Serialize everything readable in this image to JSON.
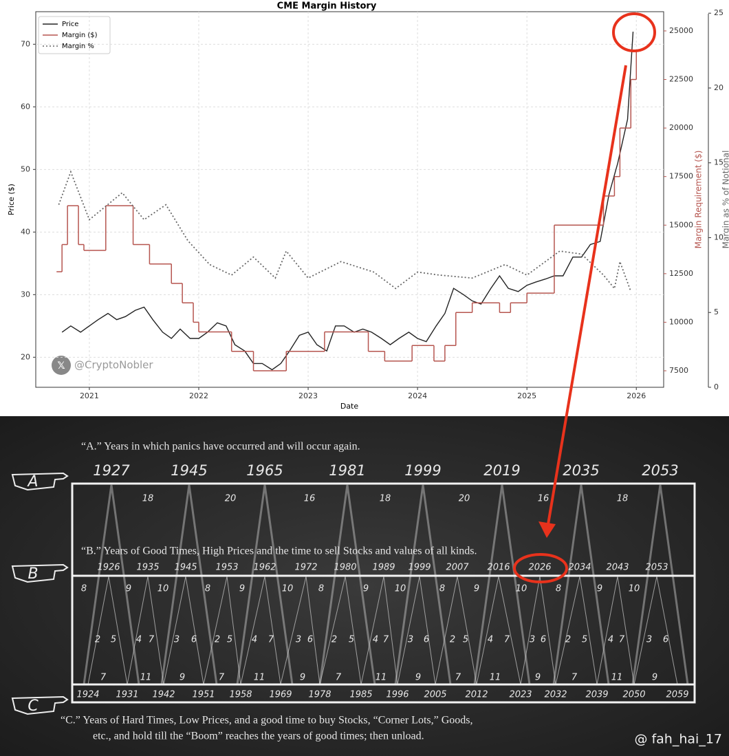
{
  "chart_data": {
    "type": "line",
    "title": "CME Margin History",
    "xlabel": "Date",
    "ylabel": "Price ($)",
    "y2label": "Margin Requirement ($)",
    "y3label": "Margin as % of Notional",
    "xlim": [
      2020.51,
      2026.25
    ],
    "xticks": [
      2021,
      2022,
      2023,
      2024,
      2025,
      2026
    ],
    "ylim": [
      15.2,
      75.2
    ],
    "yticks": [
      20,
      30,
      40,
      50,
      60,
      70
    ],
    "y2lim": [
      6650,
      25990
    ],
    "y2ticks": [
      7500,
      10000,
      12500,
      15000,
      17500,
      20000,
      22500,
      25000
    ],
    "y3lim": [
      0,
      25.1
    ],
    "y3ticks": [
      0,
      5,
      10,
      15,
      20,
      25
    ],
    "grid": true,
    "legend": "upper left",
    "series": [
      {
        "name": "Price",
        "color": "#222222",
        "style": "solid",
        "axis": "y",
        "x": [
          2020.75,
          2020.83,
          2020.92,
          2021.0,
          2021.08,
          2021.17,
          2021.25,
          2021.33,
          2021.42,
          2021.5,
          2021.58,
          2021.67,
          2021.75,
          2021.83,
          2021.92,
          2022.0,
          2022.08,
          2022.17,
          2022.25,
          2022.33,
          2022.42,
          2022.5,
          2022.58,
          2022.67,
          2022.75,
          2022.83,
          2022.92,
          2023.0,
          2023.08,
          2023.17,
          2023.25,
          2023.33,
          2023.42,
          2023.5,
          2023.58,
          2023.67,
          2023.75,
          2023.83,
          2023.92,
          2024.0,
          2024.08,
          2024.17,
          2024.25,
          2024.33,
          2024.42,
          2024.5,
          2024.58,
          2024.67,
          2024.75,
          2024.83,
          2024.92,
          2025.0,
          2025.08,
          2025.17,
          2025.25,
          2025.33,
          2025.42,
          2025.5,
          2025.58,
          2025.67,
          2025.75,
          2025.83,
          2025.92,
          2025.97
        ],
        "values": [
          24,
          25,
          24,
          25,
          26,
          27,
          26,
          26.5,
          27.5,
          28,
          26,
          24,
          23,
          24.5,
          23,
          23,
          24,
          25.5,
          25,
          22,
          21,
          19,
          19,
          18,
          19,
          21,
          23.5,
          24,
          22,
          21,
          25,
          25,
          24,
          24.5,
          24,
          23,
          22,
          23,
          24,
          23,
          22.5,
          25,
          27,
          31,
          30,
          29,
          28.5,
          31,
          33,
          31,
          30.5,
          31.5,
          32,
          32.5,
          33,
          33,
          36,
          36,
          38,
          38.5,
          46,
          51,
          58,
          72
        ]
      },
      {
        "name": "Margin ($)",
        "color": "#b5544e",
        "style": "step",
        "axis": "y2",
        "x": [
          2020.7,
          2020.75,
          2020.8,
          2020.9,
          2020.95,
          2021.15,
          2021.4,
          2021.55,
          2021.75,
          2021.85,
          2021.95,
          2022.0,
          2022.3,
          2022.5,
          2022.8,
          2023.15,
          2023.55,
          2023.7,
          2023.95,
          2024.15,
          2024.25,
          2024.35,
          2024.5,
          2024.75,
          2024.85,
          2025.0,
          2025.25,
          2025.7,
          2025.8,
          2025.85,
          2025.95,
          2026.0
        ],
        "values": [
          12600,
          14000,
          16000,
          14000,
          13700,
          16000,
          14000,
          13000,
          12000,
          11000,
          10000,
          9500,
          8500,
          7500,
          8500,
          9500,
          8500,
          8000,
          8800,
          8000,
          8800,
          10500,
          11000,
          10500,
          11000,
          11500,
          15000,
          16500,
          17500,
          20000,
          22500,
          24000
        ]
      },
      {
        "name": "Margin %",
        "color": "#666666",
        "style": "dotted",
        "axis": "y3",
        "x": [
          2020.72,
          2020.83,
          2021.0,
          2021.3,
          2021.5,
          2021.7,
          2021.9,
          2022.1,
          2022.3,
          2022.5,
          2022.7,
          2022.8,
          2023.0,
          2023.3,
          2023.6,
          2023.8,
          2024.0,
          2024.2,
          2024.5,
          2024.8,
          2025.0,
          2025.3,
          2025.5,
          2025.7,
          2025.8,
          2025.85,
          2025.95
        ],
        "values": [
          12.2,
          14.4,
          11.2,
          13,
          11.2,
          12.2,
          9.8,
          8.2,
          7.5,
          8.7,
          7.3,
          9.1,
          7.3,
          8.4,
          7.7,
          6.6,
          7.7,
          7.5,
          7.3,
          8.2,
          7.5,
          9.1,
          8.9,
          7.5,
          6.6,
          8.4,
          6.4
        ]
      }
    ]
  },
  "watermarks": [
    "@CryptoNobler",
    "@ fah_hai_17"
  ],
  "diagram": {
    "caption_a": "“A.” Years in which panics have occurred and will occur again.",
    "caption_b": "“B.” Years of Good Times, High Prices and the time to sell Stocks and values of all kinds.",
    "caption_c": [
      "“C.”  Years of Hard Times, Low Prices, and a good time to buy Stocks, “Corner Lots,” Goods,",
      "etc., and hold till  the “Boom” reaches the years of good times; then unload."
    ],
    "hands": [
      "A",
      "B",
      "C"
    ],
    "a_years": [
      1927,
      1945,
      1965,
      1981,
      1999,
      2019,
      2035,
      2053
    ],
    "a_intervals": [
      18,
      20,
      16,
      18,
      20,
      16,
      18
    ],
    "b_years": [
      1926,
      1935,
      1945,
      1953,
      1962,
      1972,
      1980,
      1989,
      1999,
      2007,
      2016,
      2026,
      2034,
      2043,
      2053
    ],
    "c_years": [
      1924,
      1931,
      1942,
      1951,
      1958,
      1969,
      1978,
      1985,
      1996,
      2005,
      2012,
      2023,
      2032,
      2039,
      2050,
      2059
    ],
    "row_top": [
      8,
      9,
      10,
      8,
      9,
      10,
      8,
      9,
      10,
      8,
      9,
      10,
      8,
      9,
      10
    ],
    "row_mid": [
      2,
      5,
      4,
      7,
      3,
      6,
      2,
      5,
      4,
      7,
      3,
      6,
      2,
      5,
      4,
      7,
      3,
      6,
      2,
      5,
      4,
      7,
      3,
      6,
      2,
      5,
      4,
      7,
      3,
      6
    ],
    "row_bottom": [
      7,
      11,
      9,
      7,
      11,
      9,
      7,
      11,
      9,
      7,
      11,
      9,
      7,
      11,
      9
    ]
  }
}
